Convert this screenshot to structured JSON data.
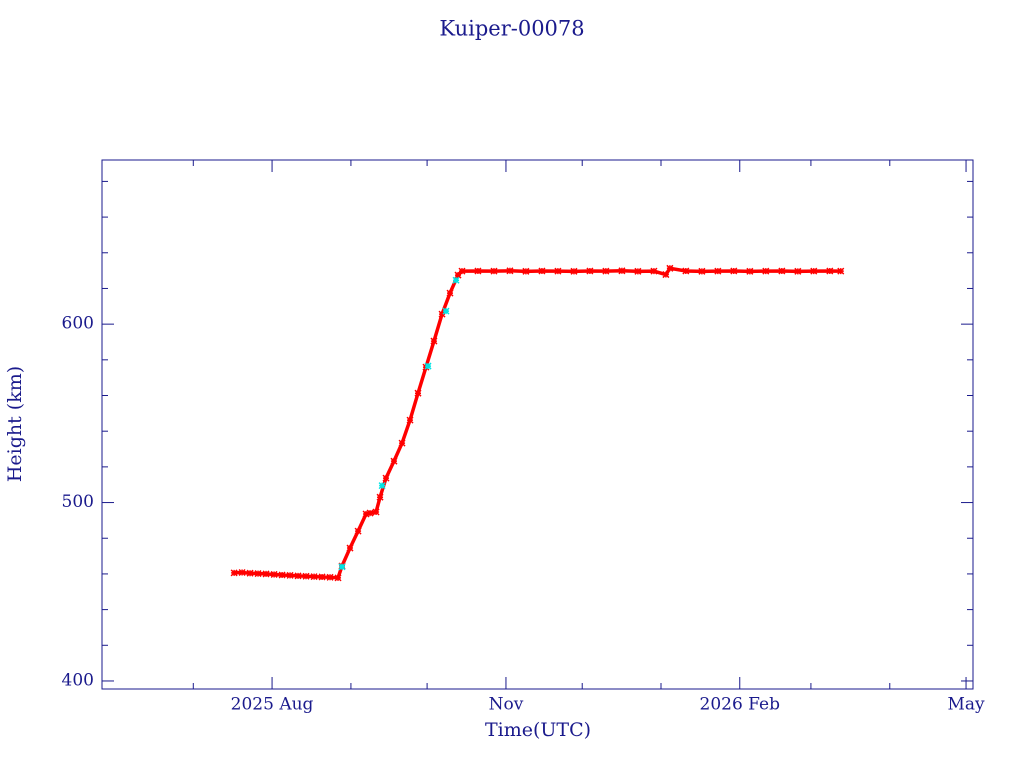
{
  "chart_data": {
    "type": "scatter",
    "title": "Kuiper-00078",
    "x_label": "Time(UTC)",
    "y_label": "Height (km)",
    "xlim": [
      2025.3975,
      2026.3363
    ],
    "xticks": [
      {
        "value": 2025.5808,
        "label": "2025 Aug"
      },
      {
        "value": 2025.8329,
        "label": "Nov"
      },
      {
        "value": 2026.0849,
        "label": "2026 Feb"
      },
      {
        "value": 2026.3288,
        "label": "May"
      }
    ],
    "xticks_minor": [
      2025.4959,
      2025.6658,
      2025.7479,
      2025.9151,
      2026.0,
      2026.1616,
      2026.2466
    ],
    "ylim": [
      395.5,
      692
    ],
    "yticks": [
      400,
      500,
      600
    ],
    "yticks_minor": [
      420,
      440,
      460,
      480,
      520,
      540,
      560,
      580,
      620,
      640,
      660,
      680
    ],
    "axis_color": "#1a1a8c",
    "series": [
      {
        "color": "#ff0000",
        "x": [
          2025.5399,
          2025.5485,
          2025.5571,
          2025.5657,
          2025.5743,
          2025.583,
          2025.5916,
          2025.6002,
          2025.6088,
          2025.6174,
          2025.6261,
          2025.6347,
          2025.6433,
          2025.6519,
          2025.6562,
          2025.6648,
          2025.6735,
          2025.6821,
          2025.6864,
          2025.6929,
          2025.6972,
          2025.7036,
          2025.7122,
          2025.7209,
          2025.7295,
          2025.7381,
          2025.7467,
          2025.7553,
          2025.764,
          2025.7726,
          2025.7812,
          2025.7855,
          2025.8027,
          2025.82,
          2025.8372,
          2025.8544,
          2025.8717,
          2025.8889,
          2025.9062,
          2025.9234,
          2025.9406,
          2025.9579,
          2025.9751,
          2025.9924,
          2026.0053,
          2026.0096,
          2026.0268,
          2026.0441,
          2026.0613,
          2026.0785,
          2026.0958,
          2026.113,
          2026.1303,
          2026.1475,
          2026.1647,
          2026.182,
          2026.1938
        ],
        "values": [
          460.6,
          460.8,
          460.4,
          460.2,
          460.0,
          459.7,
          459.4,
          459.2,
          458.9,
          458.7,
          458.5,
          458.3,
          458.1,
          457.8,
          464.4,
          474.5,
          484.0,
          493.6,
          494.1,
          494.7,
          503.0,
          513.7,
          523.2,
          533.3,
          546.2,
          561.3,
          575.9,
          590.5,
          605.6,
          617.4,
          627.5,
          629.7,
          629.8,
          629.7,
          629.9,
          629.6,
          629.8,
          629.7,
          629.6,
          629.8,
          629.7,
          629.9,
          629.6,
          629.7,
          627.8,
          631.3,
          629.8,
          629.6,
          629.7,
          629.8,
          629.6,
          629.7,
          629.8,
          629.6,
          629.7,
          629.8,
          629.7
        ]
      },
      {
        "color": "#00e5e5",
        "x": [
          2025.6562,
          2025.6994,
          2025.7489,
          2025.7683,
          2025.7791
        ],
        "values": [
          464.0,
          509.5,
          576.5,
          607.3,
          624.6
        ]
      }
    ]
  }
}
